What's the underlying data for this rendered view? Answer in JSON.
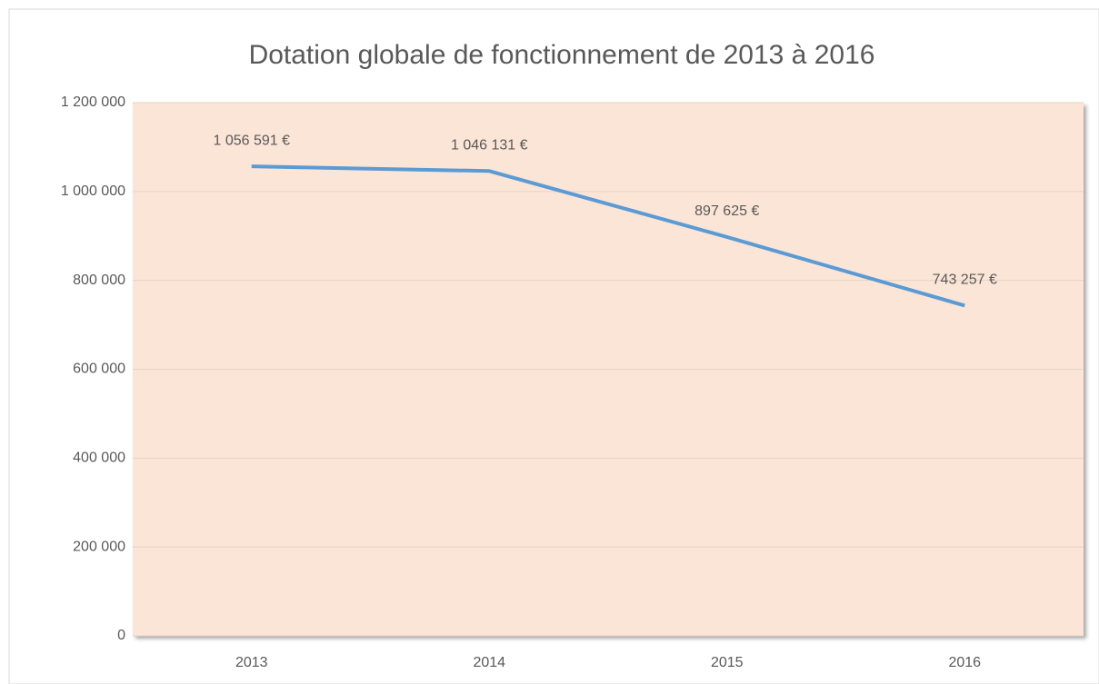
{
  "chart_data": {
    "type": "line",
    "title": "Dotation globale de fonctionnement de 2013 à 2016",
    "categories": [
      "2013",
      "2014",
      "2015",
      "2016"
    ],
    "series": [
      {
        "name": null,
        "color": "#5b9bd5",
        "values": [
          1056591,
          1046131,
          897625,
          743257
        ],
        "value_labels": [
          "1 056 591 €",
          "1 046 131 €",
          "897 625 €",
          "743 257 €"
        ]
      }
    ],
    "ylim": [
      0,
      1200000
    ],
    "yticks": [
      0,
      {
        "value": 200000,
        "label": "200 000"
      },
      {
        "value": 400000,
        "label": "400 000"
      },
      {
        "value": 600000,
        "label": "600 000"
      },
      {
        "value": 800000,
        "label": "800 000"
      },
      {
        "value": 1000000,
        "label": "1 000 000"
      },
      {
        "value": 1200000,
        "label": "1 200 000"
      }
    ],
    "grid": true,
    "plot_background": "#fbe5d6"
  }
}
